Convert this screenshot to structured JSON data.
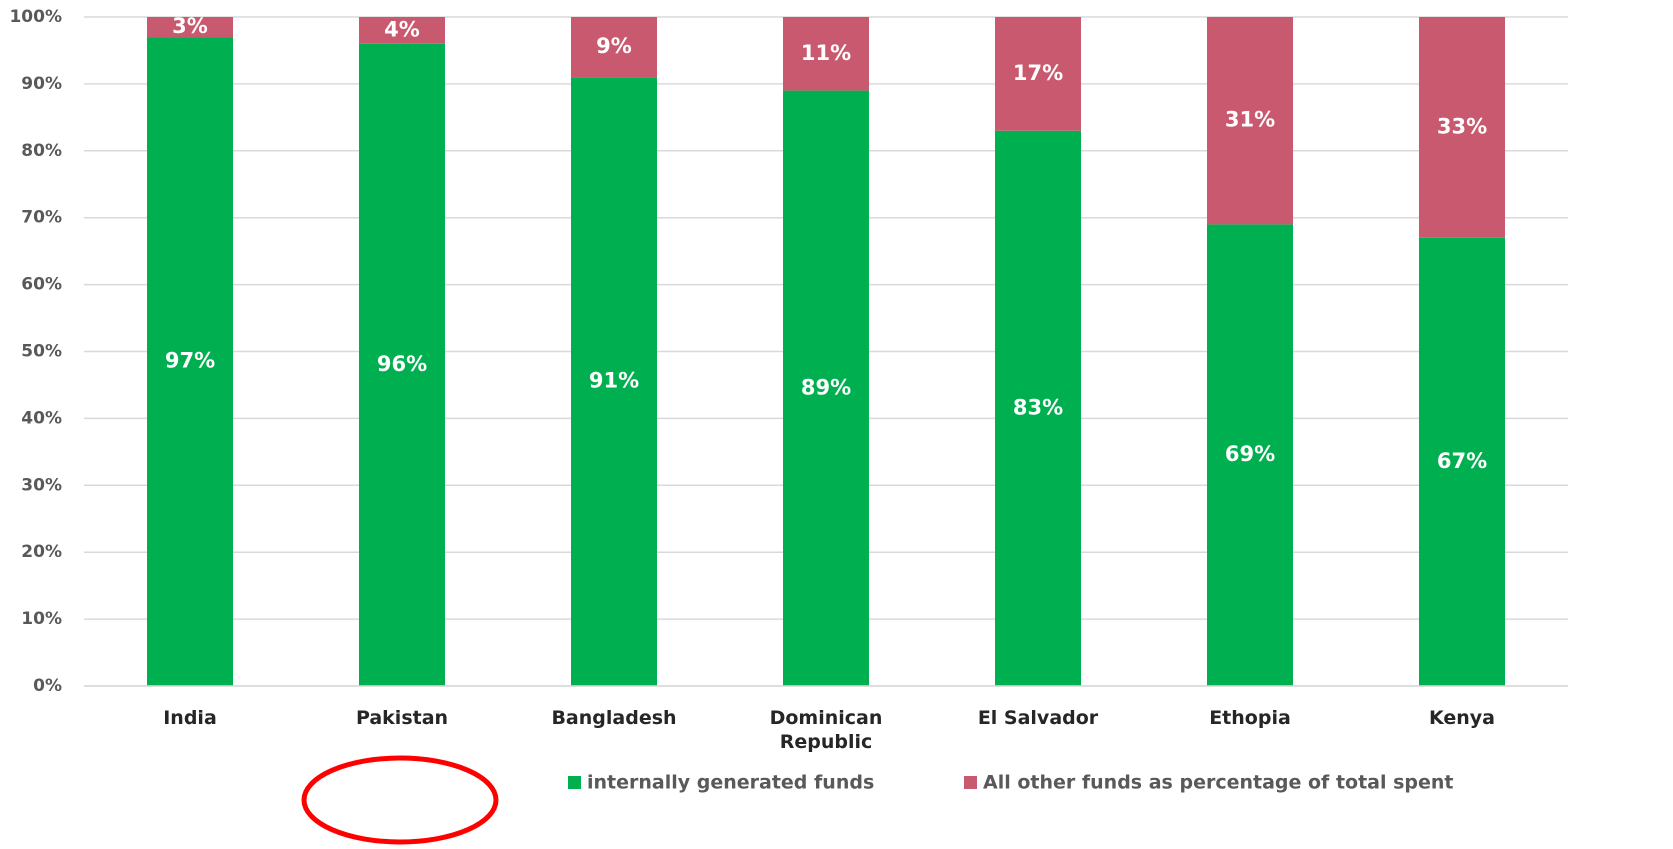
{
  "chart_data": {
    "type": "stacked_bar",
    "categories": [
      "India",
      "Pakistan",
      "Bangladesh",
      "Dominican Republic",
      "El Salvador",
      "Ethopia",
      "Kenya"
    ],
    "series": [
      {
        "name": "internally generated funds",
        "color": "#00b050",
        "values": [
          97,
          96,
          91,
          89,
          83,
          69,
          67
        ],
        "value_labels": [
          "97%",
          "96%",
          "91%",
          "89%",
          "83%",
          "69%",
          "67%"
        ]
      },
      {
        "name": "All other funds as percentage of total spent",
        "color": "#c9596e",
        "values": [
          3,
          4,
          9,
          11,
          17,
          31,
          33
        ],
        "value_labels": [
          "3%",
          "4%",
          "9%",
          "11%",
          "17%",
          "31%",
          "33%"
        ]
      }
    ],
    "ylim": [
      0,
      100
    ],
    "yticks": [
      {
        "value": 0,
        "label": "0%"
      },
      {
        "value": 10,
        "label": "10%"
      },
      {
        "value": 20,
        "label": "20%"
      },
      {
        "value": 30,
        "label": "30%"
      },
      {
        "value": 40,
        "label": "40%"
      },
      {
        "value": 50,
        "label": "50%"
      },
      {
        "value": 60,
        "label": "60%"
      },
      {
        "value": 70,
        "label": "70%"
      },
      {
        "value": 80,
        "label": "80%"
      },
      {
        "value": 90,
        "label": "90%"
      },
      {
        "value": 100,
        "label": "100%"
      }
    ],
    "grid": true,
    "legend": "bottom"
  }
}
